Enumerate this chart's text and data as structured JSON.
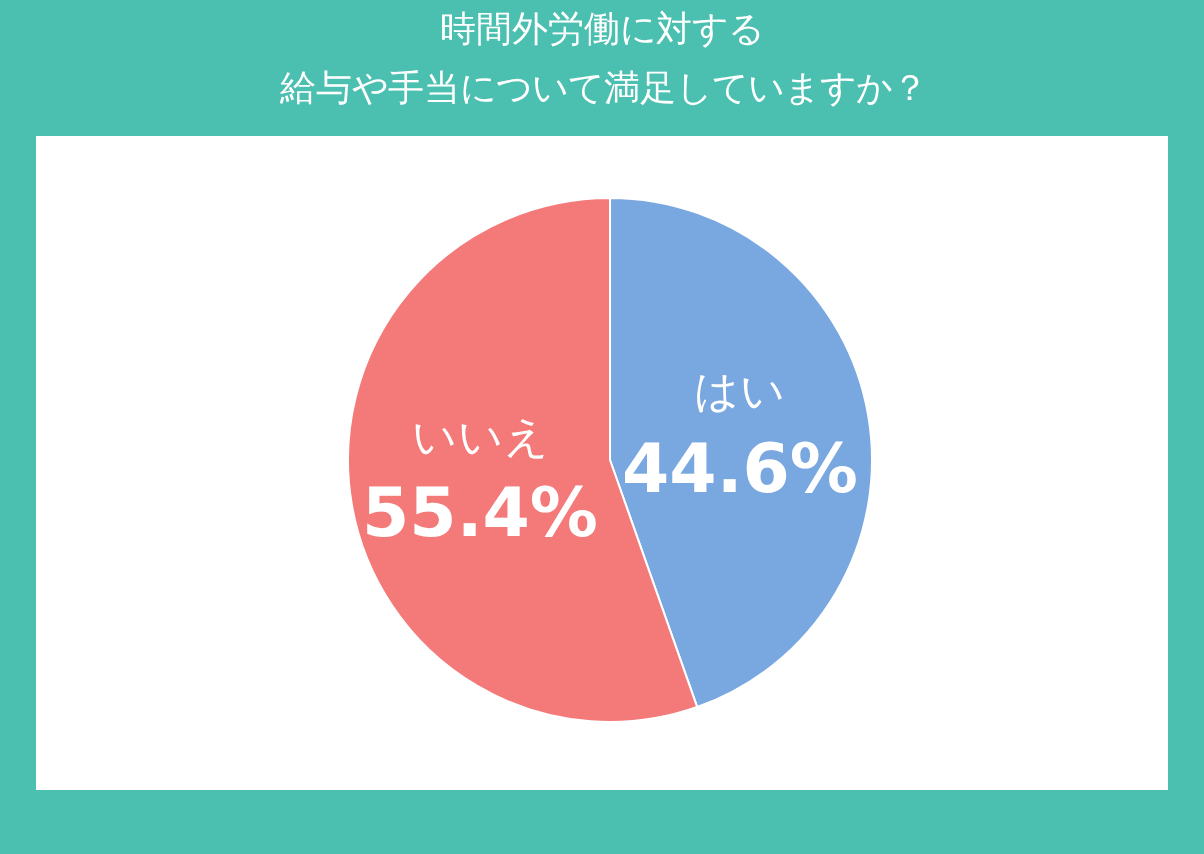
{
  "chart_data": {
    "type": "pie",
    "title": "時間外労働に対する",
    "subtitle": "給与や手当について満足していますか？",
    "categories": [
      "はい",
      "いいえ"
    ],
    "values": [
      44.6,
      55.4
    ],
    "colors": [
      "#79a7e0",
      "#f47a7a"
    ],
    "value_labels": [
      "44.6%",
      "55.4%"
    ],
    "legend": false
  }
}
